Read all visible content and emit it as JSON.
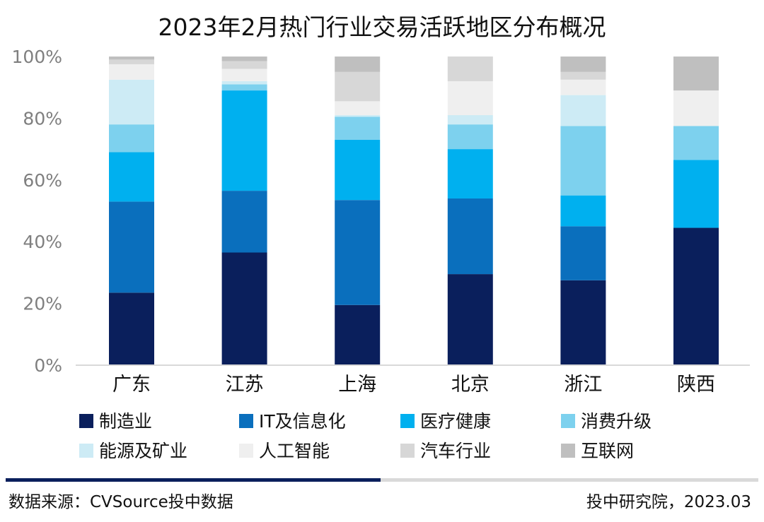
{
  "chart_data": {
    "type": "bar",
    "stacked": true,
    "title": "2023年2月热门行业交易活跃地区分布概况",
    "ylim": [
      0,
      100
    ],
    "y_ticks": [
      "0%",
      "20%",
      "40%",
      "60%",
      "80%",
      "100%"
    ],
    "categories": [
      "广东",
      "江苏",
      "上海",
      "北京",
      "浙江",
      "陕西"
    ],
    "series": [
      {
        "name": "制造业",
        "color": "#0a1f5c",
        "values": [
          23.5,
          36.5,
          19.5,
          29.5,
          27.5,
          44.5
        ]
      },
      {
        "name": "IT及信息化",
        "color": "#0a6fbd",
        "values": [
          29.5,
          20.0,
          34.0,
          24.5,
          17.5,
          0
        ]
      },
      {
        "name": "医疗健康",
        "color": "#00b0ef",
        "values": [
          16.0,
          32.5,
          19.5,
          16.0,
          10.0,
          22.0
        ]
      },
      {
        "name": "消费升级",
        "color": "#7dd1ee",
        "values": [
          9.0,
          2.0,
          7.5,
          8.0,
          22.5,
          11.0
        ]
      },
      {
        "name": "能源及矿业",
        "color": "#cdebf5",
        "values": [
          14.5,
          1.0,
          0.5,
          3.0,
          10.0,
          0
        ]
      },
      {
        "name": "人工智能",
        "color": "#efefef",
        "values": [
          5.0,
          4.0,
          4.5,
          11.0,
          5.0,
          11.5
        ]
      },
      {
        "name": "汽车行业",
        "color": "#d7d7d7",
        "values": [
          1.5,
          2.5,
          9.5,
          8.0,
          2.5,
          0
        ]
      },
      {
        "name": "互联网",
        "color": "#bfbfbf",
        "values": [
          1.0,
          1.5,
          5.0,
          0,
          5.0,
          11.0
        ]
      }
    ],
    "legend_position": "bottom",
    "grid": false
  },
  "footer": {
    "source": "数据来源：CVSource投中数据",
    "credit": "投中研究院，2023.03"
  }
}
